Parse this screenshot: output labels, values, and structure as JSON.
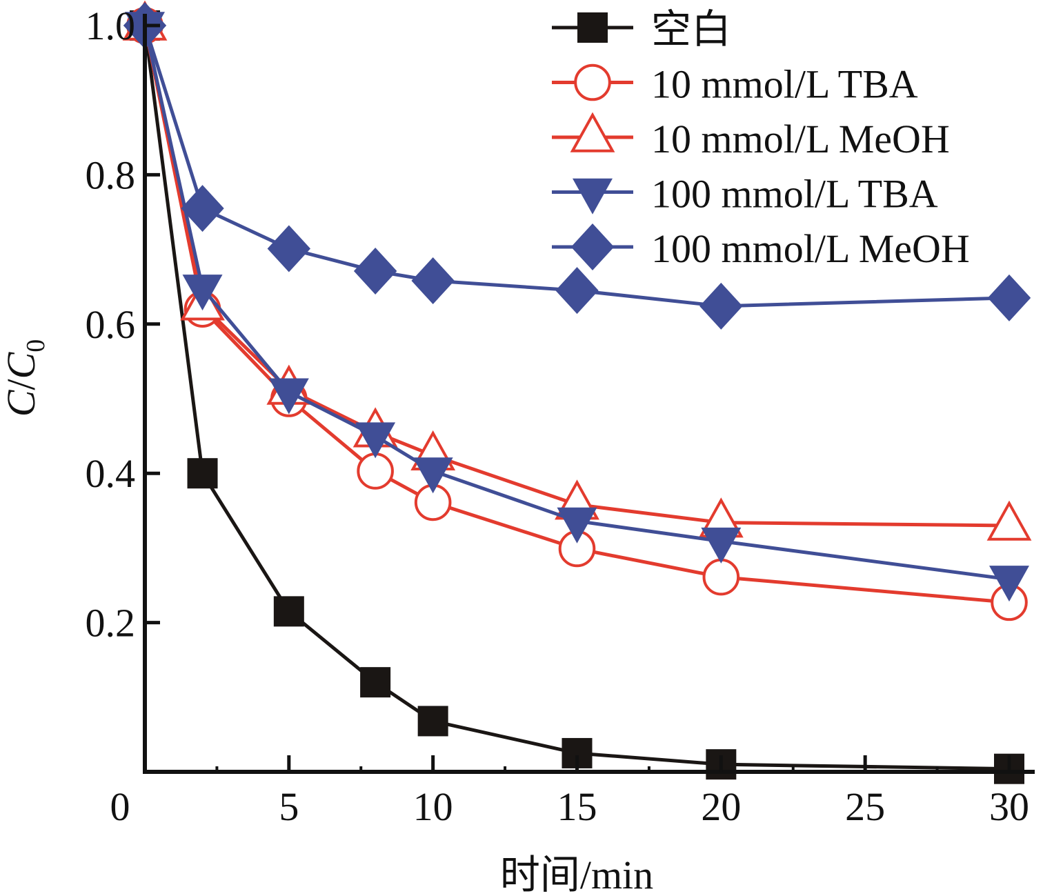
{
  "chart_data": {
    "type": "line",
    "title": "",
    "xlabel": "时间/min",
    "ylabel": "C/C0",
    "ylabel_parts": {
      "main1": "C",
      "slash": "/",
      "main2": "C",
      "sub": "0"
    },
    "xlim": [
      0,
      30
    ],
    "ylim": [
      0,
      1.0
    ],
    "xticks": [
      0,
      5,
      10,
      15,
      20,
      25,
      30
    ],
    "xtick_labels": [
      "0",
      "5",
      "10",
      "15",
      "20",
      "25",
      "30"
    ],
    "yticks": [
      0.2,
      0.4,
      0.6,
      0.8,
      1.0
    ],
    "ytick_labels": [
      "0.2",
      "0.4",
      "0.6",
      "0.8",
      "1.0"
    ],
    "grid": false,
    "legend_position": "top-right",
    "x": [
      0,
      2,
      5,
      8,
      10,
      15,
      20,
      30
    ],
    "series": [
      {
        "name": "空白",
        "color": "#1a1614",
        "marker": "square",
        "filled": true,
        "values": [
          1.0,
          0.4,
          0.215,
          0.12,
          0.068,
          0.025,
          0.01,
          0.004
        ]
      },
      {
        "name": "10 mmol/L TBA",
        "color": "#e33b2e",
        "marker": "circle",
        "filled": false,
        "values": [
          1.0,
          0.62,
          0.5,
          0.403,
          0.361,
          0.299,
          0.261,
          0.227
        ]
      },
      {
        "name": "10 mmol/L MeOH",
        "color": "#e33b2e",
        "marker": "triangle-up",
        "filled": false,
        "values": [
          1.0,
          0.625,
          0.512,
          0.455,
          0.424,
          0.358,
          0.334,
          0.33
        ]
      },
      {
        "name": "100 mmol/L TBA",
        "color": "#404e96",
        "marker": "triangle-down",
        "filled": true,
        "values": [
          1.0,
          0.648,
          0.509,
          0.45,
          0.403,
          0.336,
          0.309,
          0.258
        ]
      },
      {
        "name": "100 mmol/L MeOH",
        "color": "#404e96",
        "marker": "diamond",
        "filled": true,
        "values": [
          1.0,
          0.755,
          0.701,
          0.671,
          0.658,
          0.645,
          0.624,
          0.635
        ]
      }
    ]
  }
}
